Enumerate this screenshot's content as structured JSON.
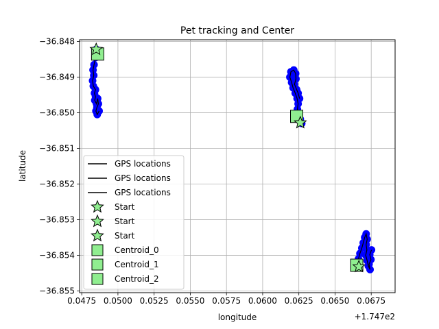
{
  "chart_data": {
    "type": "scatter",
    "title": "Pet tracking and Center",
    "xlabel": "longitude",
    "ylabel": "latitude",
    "x_offset_label": "+1.747e2",
    "xlim": [
      0.04735,
      0.06915
    ],
    "ylim": [
      -36.85505,
      -36.84795
    ],
    "xticks": [
      0.0475,
      0.05,
      0.0525,
      0.055,
      0.0575,
      0.06,
      0.0625,
      0.065,
      0.0675
    ],
    "xtick_labels": [
      "0.0475",
      "0.0500",
      "0.0525",
      "0.0550",
      "0.0575",
      "0.0600",
      "0.0625",
      "0.0650",
      "0.0675"
    ],
    "yticks": [
      -36.848,
      -36.849,
      -36.85,
      -36.851,
      -36.852,
      -36.853,
      -36.854,
      -36.855
    ],
    "ytick_labels": [
      "−36.848",
      "−36.849",
      "−36.850",
      "−36.851",
      "−36.852",
      "−36.853",
      "−36.854",
      "−36.855"
    ],
    "grid": true,
    "legend_position": "lower-left",
    "colors": {
      "points": "#0000ff",
      "track": "#000000",
      "start": "#90ee90",
      "centroid": "#90ee90",
      "grid": "#b0b0b0"
    },
    "legend": [
      {
        "label": "GPS locations",
        "marker": "line"
      },
      {
        "label": "GPS locations",
        "marker": "line"
      },
      {
        "label": "GPS locations",
        "marker": "line"
      },
      {
        "label": "Start",
        "marker": "star"
      },
      {
        "label": "Start",
        "marker": "star"
      },
      {
        "label": "Start",
        "marker": "star"
      },
      {
        "label": "Centroid_0",
        "marker": "square"
      },
      {
        "label": "Centroid_1",
        "marker": "square"
      },
      {
        "label": "Centroid_2",
        "marker": "square"
      }
    ],
    "series": [
      {
        "track": [
          [
            0.0485,
            -36.84822
          ],
          [
            0.04845,
            -36.84845
          ],
          [
            0.04835,
            -36.84865
          ],
          [
            0.04828,
            -36.8488
          ],
          [
            0.04833,
            -36.84895
          ],
          [
            0.04825,
            -36.8491
          ],
          [
            0.0483,
            -36.84925
          ],
          [
            0.04845,
            -36.84935
          ],
          [
            0.04838,
            -36.84945
          ],
          [
            0.04845,
            -36.84955
          ],
          [
            0.0484,
            -36.84965
          ],
          [
            0.04852,
            -36.84975
          ],
          [
            0.0486,
            -36.8496
          ],
          [
            0.04865,
            -36.84975
          ],
          [
            0.04855,
            -36.84985
          ],
          [
            0.04848,
            -36.84995
          ],
          [
            0.04857,
            -36.85005
          ],
          [
            0.0487,
            -36.84995
          ]
        ],
        "start": [
          0.0485,
          -36.84822
        ],
        "centroid": [
          0.0486,
          -36.84835
        ]
      },
      {
        "track": [
          [
            0.0627,
            -36.8503
          ],
          [
            0.0626,
            -36.85018
          ],
          [
            0.06245,
            -36.85005
          ],
          [
            0.0624,
            -36.8499
          ],
          [
            0.06245,
            -36.84975
          ],
          [
            0.06238,
            -36.8496
          ],
          [
            0.06225,
            -36.84945
          ],
          [
            0.0621,
            -36.8493
          ],
          [
            0.062,
            -36.84915
          ],
          [
            0.06188,
            -36.849
          ],
          [
            0.06195,
            -36.84885
          ],
          [
            0.06215,
            -36.8488
          ],
          [
            0.06228,
            -36.8489
          ],
          [
            0.0623,
            -36.84905
          ],
          [
            0.0622,
            -36.8492
          ],
          [
            0.06235,
            -36.84935
          ],
          [
            0.06245,
            -36.84945
          ],
          [
            0.06255,
            -36.8496
          ]
        ],
        "start": [
          0.0626,
          -36.85028
        ],
        "centroid": [
          0.06235,
          -36.8501
        ]
      },
      {
        "track": [
          [
            0.0665,
            -36.85425
          ],
          [
            0.06662,
            -36.8541
          ],
          [
            0.06672,
            -36.85395
          ],
          [
            0.06685,
            -36.8538
          ],
          [
            0.06695,
            -36.85365
          ],
          [
            0.06705,
            -36.8535
          ],
          [
            0.06715,
            -36.8534
          ],
          [
            0.06722,
            -36.85355
          ],
          [
            0.06715,
            -36.8537
          ],
          [
            0.0672,
            -36.85385
          ],
          [
            0.06712,
            -36.854
          ],
          [
            0.06722,
            -36.85415
          ],
          [
            0.0673,
            -36.8543
          ],
          [
            0.06742,
            -36.8544
          ],
          [
            0.06735,
            -36.85425
          ],
          [
            0.06748,
            -36.85412
          ],
          [
            0.0674,
            -36.85398
          ],
          [
            0.06752,
            -36.85385
          ]
        ],
        "start": [
          0.06665,
          -36.85432
        ],
        "centroid": [
          0.0665,
          -36.85428
        ]
      }
    ]
  }
}
